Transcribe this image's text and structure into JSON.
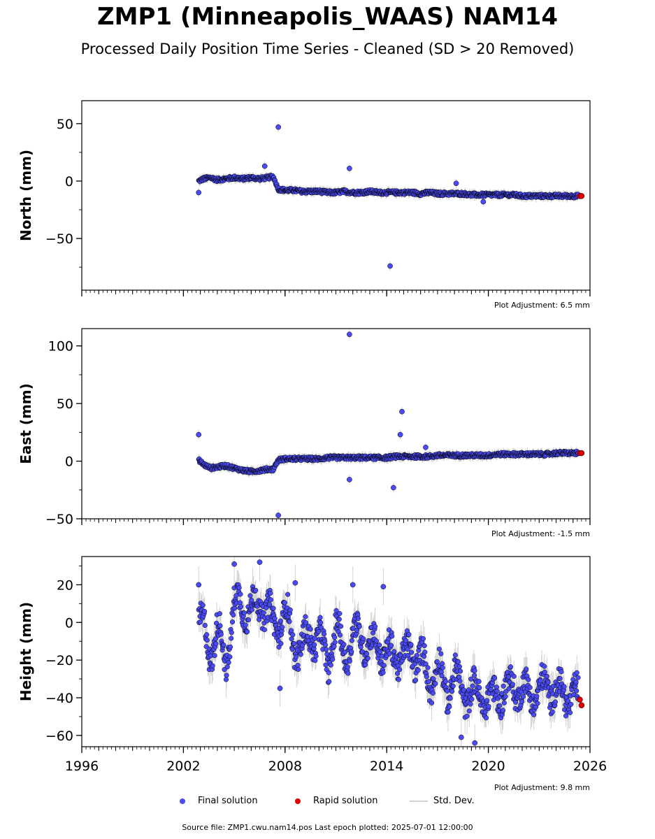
{
  "header": {
    "title": "ZMP1 (Minneapolis_WAAS) NAM14",
    "subtitle": "Processed Daily Position Time Series - Cleaned (SD > 20 Removed)"
  },
  "legend": {
    "final_label": "Final solution",
    "rapid_label": "Rapid solution",
    "std_label": "Std. Dev."
  },
  "footer": {
    "source": "Source file: ZMP1.cwu.nam14.pos  Last epoch plotted: 2025-07-01 12:00:00"
  },
  "colors": {
    "final": "#4b4bf5",
    "rapid": "#e00000",
    "stddev": "#c8c8c8",
    "marker_edge": "#000000"
  },
  "chart_data": [
    {
      "type": "scatter",
      "panel": "north",
      "ylabel": "North (mm)",
      "xlim": [
        1996,
        2026
      ],
      "ylim": [
        -95,
        70
      ],
      "yticks": [
        50,
        0,
        -50
      ],
      "xticks": [
        1996,
        2002,
        2008,
        2014,
        2020,
        2026
      ],
      "show_xticklabels": false,
      "adjustment": "Plot Adjustment: 6.5 mm",
      "series": [
        {
          "name": "Final solution",
          "x": [
            2002.9,
            2003.2,
            2003.6,
            2004.0,
            2004.5,
            2005.0,
            2005.5,
            2006.0,
            2006.5,
            2007.0,
            2007.3,
            2007.6,
            2008.0,
            2008.5,
            2009.0,
            2009.5,
            2010.0,
            2010.5,
            2011.0,
            2011.5,
            2012.0,
            2012.5,
            2013.0,
            2013.5,
            2014.0,
            2014.5,
            2015.0,
            2015.5,
            2016.0,
            2016.5,
            2017.0,
            2017.5,
            2018.0,
            2018.5,
            2019.0,
            2019.5,
            2020.0,
            2020.5,
            2021.0,
            2021.5,
            2022.0,
            2022.5,
            2023.0,
            2023.5,
            2024.0,
            2024.5,
            2025.0,
            2025.3
          ],
          "y": [
            0,
            2,
            3,
            1,
            2,
            3,
            2,
            3,
            2,
            3,
            4,
            -7,
            -8,
            -8,
            -9,
            -9,
            -9,
            -10,
            -10,
            -9,
            -10,
            -10,
            -9,
            -10,
            -10,
            -10,
            -10,
            -10,
            -11,
            -10,
            -11,
            -11,
            -11,
            -11,
            -12,
            -12,
            -12,
            -12,
            -12,
            -12,
            -13,
            -13,
            -13,
            -13,
            -13,
            -13,
            -13,
            -13
          ],
          "outliers": [
            [
              2007.6,
              47
            ],
            [
              2014.2,
              -74
            ],
            [
              2011.8,
              11
            ],
            [
              2002.9,
              -10
            ],
            [
              2006.8,
              13
            ],
            [
              2018.1,
              -2
            ],
            [
              2019.7,
              -18
            ]
          ]
        },
        {
          "name": "Rapid solution",
          "x": [
            2025.4,
            2025.5
          ],
          "y": [
            -13,
            -13
          ]
        }
      ]
    },
    {
      "type": "scatter",
      "panel": "east",
      "ylabel": "East (mm)",
      "xlim": [
        1996,
        2026
      ],
      "ylim": [
        -50,
        115
      ],
      "yticks": [
        100,
        50,
        0,
        -50
      ],
      "xticks": [
        1996,
        2002,
        2008,
        2014,
        2020,
        2026
      ],
      "show_xticklabels": false,
      "adjustment": "Plot Adjustment: -1.5 mm",
      "series": [
        {
          "name": "Final solution",
          "x": [
            2002.9,
            2003.2,
            2003.6,
            2004.0,
            2004.5,
            2005.0,
            2005.5,
            2006.0,
            2006.5,
            2007.0,
            2007.3,
            2007.6,
            2008.0,
            2008.5,
            2009.0,
            2009.5,
            2010.0,
            2010.5,
            2011.0,
            2011.5,
            2012.0,
            2012.5,
            2013.0,
            2013.5,
            2014.0,
            2014.5,
            2015.0,
            2015.5,
            2016.0,
            2016.5,
            2017.0,
            2017.5,
            2018.0,
            2018.5,
            2019.0,
            2019.5,
            2020.0,
            2020.5,
            2021.0,
            2021.5,
            2022.0,
            2022.5,
            2023.0,
            2023.5,
            2024.0,
            2024.5,
            2025.0,
            2025.3
          ],
          "y": [
            1,
            -3,
            -6,
            -5,
            -4,
            -6,
            -8,
            -9,
            -8,
            -7,
            -7,
            1,
            2,
            2,
            2,
            2,
            2,
            3,
            3,
            3,
            3,
            3,
            3,
            3,
            3,
            4,
            4,
            4,
            4,
            4,
            5,
            5,
            5,
            5,
            5,
            5,
            5,
            6,
            6,
            6,
            6,
            6,
            6,
            6,
            7,
            7,
            7,
            7
          ],
          "outliers": [
            [
              2011.8,
              110
            ],
            [
              2014.9,
              43
            ],
            [
              2014.8,
              23
            ],
            [
              2002.9,
              23
            ],
            [
              2011.8,
              -16
            ],
            [
              2014.4,
              -23
            ],
            [
              2007.6,
              -47
            ],
            [
              2016.3,
              12
            ]
          ]
        },
        {
          "name": "Rapid solution",
          "x": [
            2025.4,
            2025.5
          ],
          "y": [
            7,
            7
          ]
        }
      ]
    },
    {
      "type": "scatter",
      "panel": "height",
      "ylabel": "Height (mm)",
      "xlim": [
        1996,
        2026
      ],
      "ylim": [
        -66,
        35
      ],
      "yticks": [
        20,
        0,
        -20,
        -40,
        -60
      ],
      "xticks": [
        1996,
        2002,
        2008,
        2014,
        2020,
        2026
      ],
      "show_xticklabels": true,
      "adjustment": "Plot Adjustment: 9.8 mm",
      "series": [
        {
          "name": "Final solution",
          "x": [
            2002.9,
            2003.2,
            2003.6,
            2004.0,
            2004.5,
            2005.0,
            2005.5,
            2006.0,
            2006.5,
            2007.0,
            2007.3,
            2007.6,
            2008.0,
            2008.5,
            2009.0,
            2009.5,
            2010.0,
            2010.5,
            2011.0,
            2011.5,
            2012.0,
            2012.5,
            2013.0,
            2013.5,
            2014.0,
            2014.5,
            2015.0,
            2015.5,
            2016.0,
            2016.5,
            2017.0,
            2017.5,
            2018.0,
            2018.5,
            2019.0,
            2019.5,
            2020.0,
            2020.5,
            2021.0,
            2021.5,
            2022.0,
            2022.5,
            2023.0,
            2023.5,
            2024.0,
            2024.5,
            2025.0,
            2025.3
          ],
          "y": [
            0,
            -5,
            -15,
            -5,
            -20,
            8,
            10,
            5,
            12,
            5,
            -2,
            0,
            5,
            -10,
            -15,
            -5,
            -10,
            -20,
            -5,
            -15,
            -10,
            -5,
            -15,
            -10,
            -20,
            -15,
            -20,
            -15,
            -20,
            -30,
            -25,
            -35,
            -30,
            -35,
            -40,
            -35,
            -45,
            -35,
            -40,
            -30,
            -40,
            -35,
            -40,
            -30,
            -40,
            -35,
            -42,
            -40
          ],
          "outliers": [
            [
              2005.0,
              31
            ],
            [
              2006.5,
              32
            ],
            [
              2002.9,
              20
            ],
            [
              2013.8,
              19
            ],
            [
              2012.0,
              20
            ],
            [
              2008.6,
              21
            ],
            [
              2007.7,
              -35
            ],
            [
              2019.2,
              -64
            ],
            [
              2018.4,
              -61
            ]
          ]
        },
        {
          "name": "Rapid solution",
          "x": [
            2025.4,
            2025.5
          ],
          "y": [
            -41,
            -44
          ]
        }
      ]
    }
  ]
}
